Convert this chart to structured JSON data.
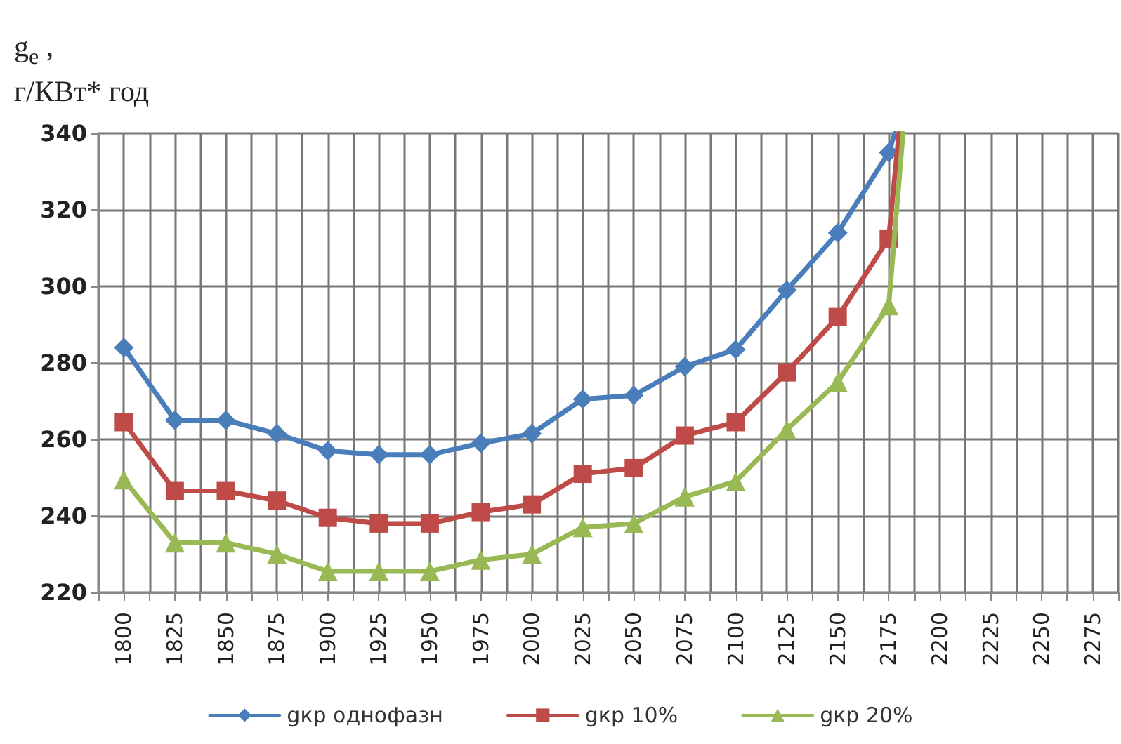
{
  "chart_data": {
    "type": "line",
    "ylabel": "g$_{e}$ ,\nг/КВт* год",
    "xlim": [
      1787.5,
      2287.5
    ],
    "xticks": [
      {
        "value": 1787.5,
        "label": null
      },
      1800,
      {
        "value": 1812.5,
        "label": null
      },
      1825,
      {
        "value": 1837.5,
        "label": null
      },
      1850,
      {
        "value": 1862.5,
        "label": null
      },
      1875,
      {
        "value": 1887.5,
        "label": null
      },
      1900,
      {
        "value": 1912.5,
        "label": null
      },
      1925,
      {
        "value": 1937.5,
        "label": null
      },
      1950,
      {
        "value": 1962.5,
        "label": null
      },
      1975,
      {
        "value": 1987.5,
        "label": null
      },
      2000,
      {
        "value": 2012.5,
        "label": null
      },
      2025,
      {
        "value": 2037.5,
        "label": null
      },
      2050,
      {
        "value": 2062.5,
        "label": null
      },
      2075,
      {
        "value": 2087.5,
        "label": null
      },
      2100,
      {
        "value": 2112.5,
        "label": null
      },
      2125,
      {
        "value": 2137.5,
        "label": null
      },
      2150,
      {
        "value": 2162.5,
        "label": null
      },
      2175,
      {
        "value": 2187.5,
        "label": null
      },
      2200,
      {
        "value": 2212.5,
        "label": null
      },
      2225,
      {
        "value": 2237.5,
        "label": null
      },
      2250,
      {
        "value": 2262.5,
        "label": null
      },
      2275,
      {
        "value": 2287.5,
        "label": null
      }
    ],
    "ylim": [
      220,
      340
    ],
    "yticks": [
      220,
      240,
      260,
      280,
      300,
      320,
      340
    ],
    "grid": true,
    "legend": "bottom",
    "line_style": "solid",
    "series": [
      {
        "name": "gкр однофазн",
        "color": "#4a7ebb",
        "marker": "diamond",
        "x": [
          1800,
          1825,
          1850,
          1875,
          1900,
          1925,
          1950,
          1975,
          2000,
          2025,
          2050,
          2075,
          2100,
          2125,
          2150,
          2175,
          2178
        ],
        "values": [
          284,
          265,
          265,
          261.5,
          257,
          256,
          256,
          259,
          261.5,
          270.5,
          271.5,
          279,
          283.5,
          299,
          314,
          335,
          340
        ]
      },
      {
        "name": "gкр 10%",
        "color": "#be4b48",
        "marker": "square",
        "x": [
          1800,
          1825,
          1850,
          1875,
          1900,
          1925,
          1950,
          1975,
          2000,
          2025,
          2050,
          2075,
          2100,
          2125,
          2150,
          2175,
          2180
        ],
        "values": [
          264.5,
          246.5,
          246.5,
          244,
          239.5,
          238,
          238,
          241,
          243,
          251,
          252.5,
          261,
          264.5,
          277.5,
          292,
          312.5,
          340
        ]
      },
      {
        "name": "gкр 20%",
        "color": "#98b954",
        "marker": "triangle",
        "x": [
          1800,
          1825,
          1850,
          1875,
          1900,
          1925,
          1950,
          1975,
          2000,
          2025,
          2050,
          2075,
          2100,
          2125,
          2150,
          2175,
          2182
        ],
        "values": [
          249.5,
          233,
          233,
          230,
          225.5,
          225.5,
          225.5,
          228.5,
          230,
          237,
          238,
          245,
          249,
          262.5,
          275,
          295,
          340
        ]
      }
    ]
  }
}
